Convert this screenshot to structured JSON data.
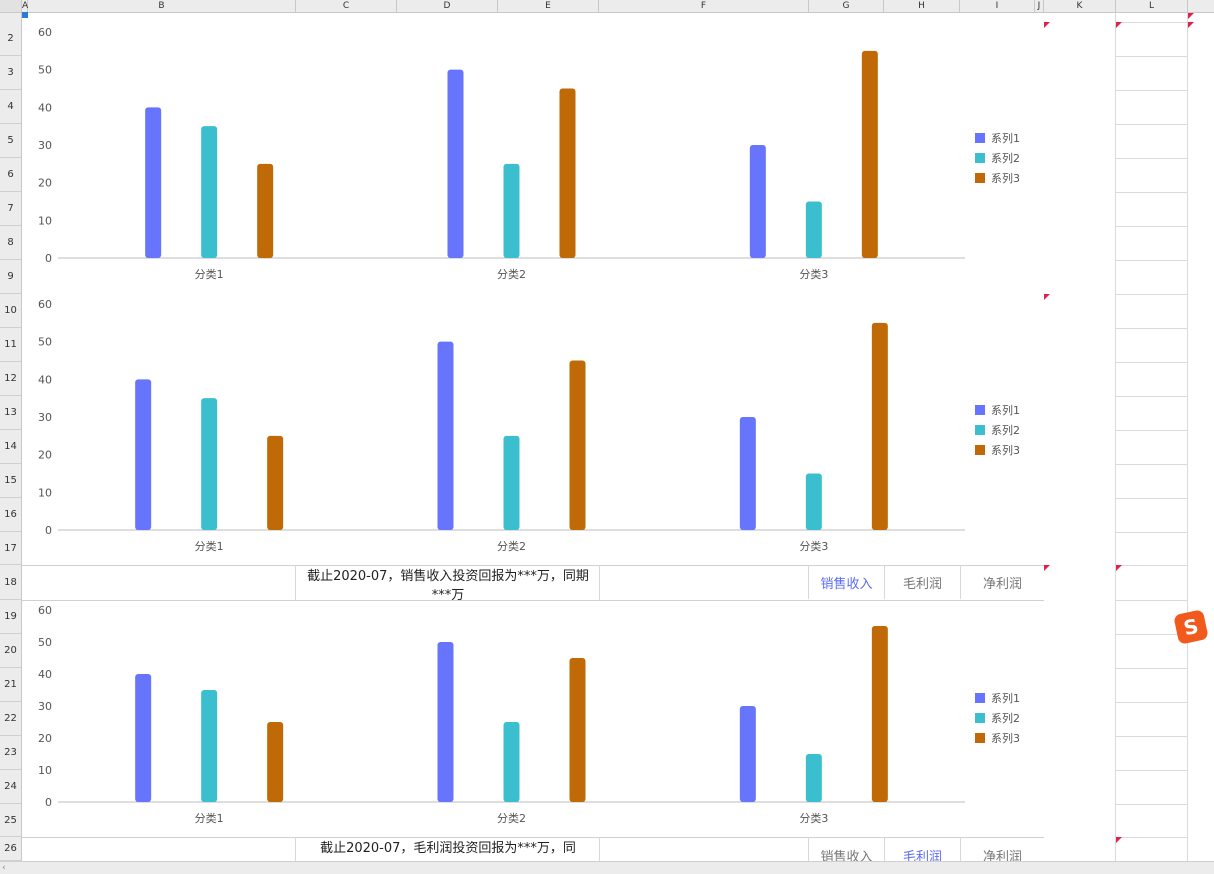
{
  "columns": [
    "A",
    "B",
    "C",
    "D",
    "E",
    "F",
    "G",
    "H",
    "I",
    "J",
    "K",
    "L"
  ],
  "rows": [
    "2",
    "3",
    "4",
    "5",
    "6",
    "7",
    "8",
    "9",
    "10",
    "11",
    "12",
    "13",
    "14",
    "15",
    "16",
    "17",
    "18",
    "19",
    "20",
    "21",
    "22",
    "23",
    "24",
    "25",
    "26"
  ],
  "charts": [
    {
      "chart_data": {
        "type": "bar",
        "categories": [
          "分类1",
          "分类2",
          "分类3"
        ],
        "series": [
          {
            "name": "系列1",
            "values": [
              40,
              50,
              30
            ]
          },
          {
            "name": "系列2",
            "values": [
              35,
              25,
              15
            ]
          },
          {
            "name": "系列3",
            "values": [
              25,
              45,
              55
            ]
          }
        ],
        "ylim": [
          0,
          60
        ],
        "yticks": [
          0,
          10,
          20,
          30,
          40,
          50,
          60
        ],
        "legend": "right",
        "colors": [
          "#6675fb",
          "#3bbfce",
          "#bf6a06"
        ]
      }
    },
    {
      "chart_data": {
        "type": "bar",
        "categories": [
          "分类1",
          "分类2",
          "分类3"
        ],
        "series": [
          {
            "name": "系列1",
            "values": [
              40,
              50,
              30
            ]
          },
          {
            "name": "系列2",
            "values": [
              35,
              25,
              15
            ]
          },
          {
            "name": "系列3",
            "values": [
              25,
              45,
              55
            ]
          }
        ],
        "ylim": [
          0,
          60
        ],
        "yticks": [
          0,
          10,
          20,
          30,
          40,
          50,
          60
        ],
        "legend": "right",
        "colors": [
          "#6675fb",
          "#3bbfce",
          "#bf6a06"
        ]
      }
    },
    {
      "chart_data": {
        "type": "bar",
        "categories": [
          "分类1",
          "分类2",
          "分类3"
        ],
        "series": [
          {
            "name": "系列1",
            "values": [
              40,
              50,
              30
            ]
          },
          {
            "name": "系列2",
            "values": [
              35,
              25,
              15
            ]
          },
          {
            "name": "系列3",
            "values": [
              25,
              45,
              55
            ]
          }
        ],
        "ylim": [
          0,
          60
        ],
        "yticks": [
          0,
          10,
          20,
          30,
          40,
          50,
          60
        ],
        "legend": "right",
        "colors": [
          "#6675fb",
          "#3bbfce",
          "#bf6a06"
        ]
      }
    }
  ],
  "panels": [
    {
      "caption": "截止2020-07，销售收入投资回报为***万，同期***万",
      "tabs": [
        "销售收入",
        "毛利润",
        "净利润"
      ],
      "active": 0
    },
    {
      "caption": "截止2020-07，毛利润投资回报为***万，同",
      "tabs": [
        "销售收入",
        "毛利润",
        "净利润"
      ],
      "active": 1
    }
  ],
  "colors": {
    "active_tab": "#5b6cf5",
    "comment_flag": "#e0224a",
    "sogou": "#f25a1d"
  },
  "sogou_icon": "S"
}
